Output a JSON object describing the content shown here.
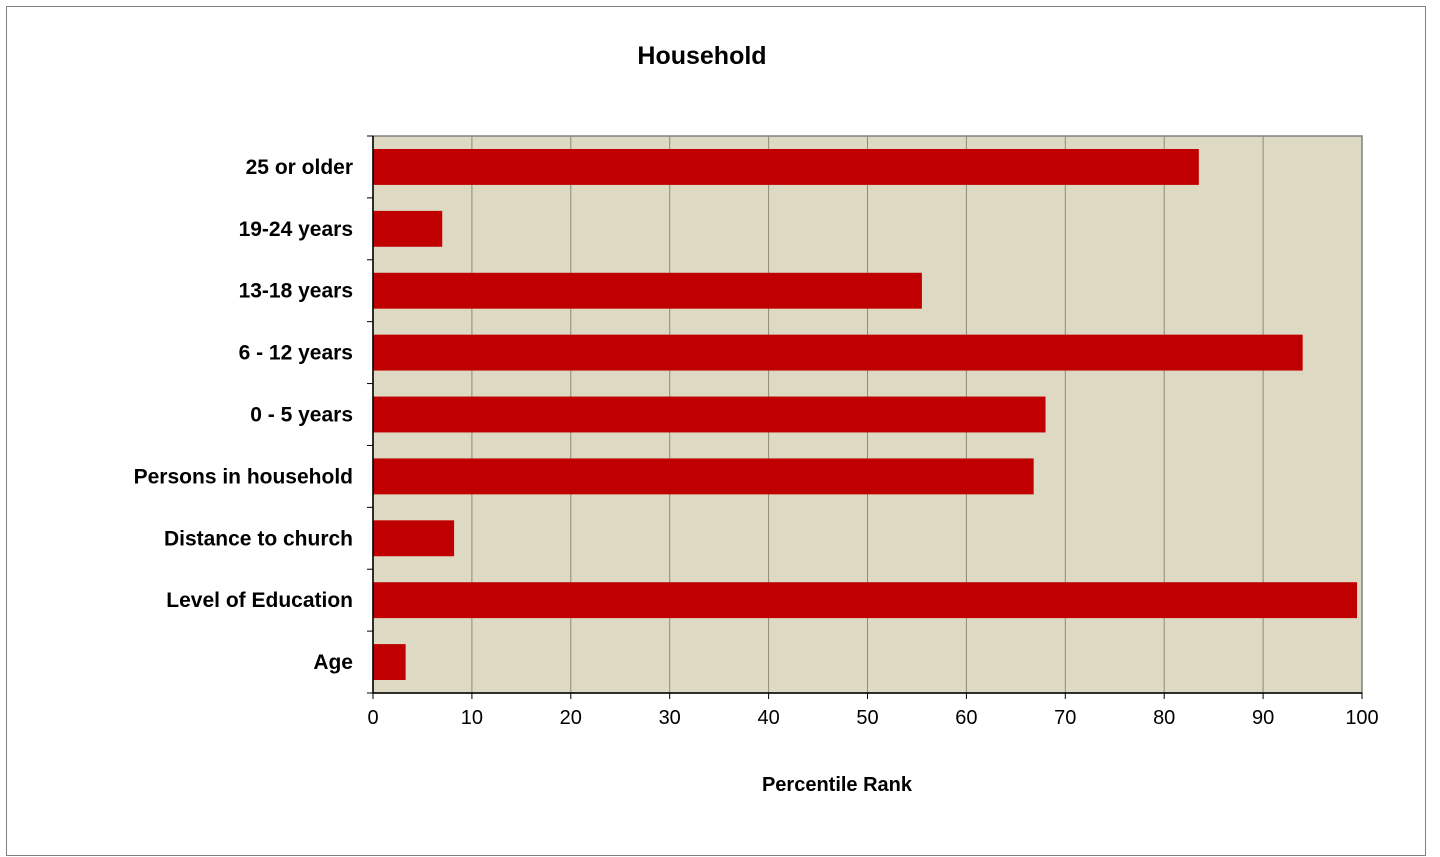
{
  "chart_data": {
    "type": "bar",
    "orientation": "horizontal",
    "title": "Household",
    "xlabel": "Percentile Rank",
    "ylabel": "",
    "xlim": [
      0,
      100
    ],
    "xticks": [
      0,
      10,
      20,
      30,
      40,
      50,
      60,
      70,
      80,
      90,
      100
    ],
    "categories": [
      "25 or older",
      "19-24 years",
      "13-18 years",
      "6 - 12 years",
      "0 - 5 years",
      "Persons in household",
      "Distance to church",
      "Level of Education",
      "Age"
    ],
    "values": [
      83.5,
      7,
      55.5,
      94,
      68,
      66.8,
      8.2,
      99.5,
      3.3
    ],
    "grid": "vertical",
    "legend": "none",
    "colors": {
      "bar": "#c00000",
      "plot_background": "#ddd9c3",
      "gridline": "#8c8c78",
      "axis": "#000000"
    }
  }
}
